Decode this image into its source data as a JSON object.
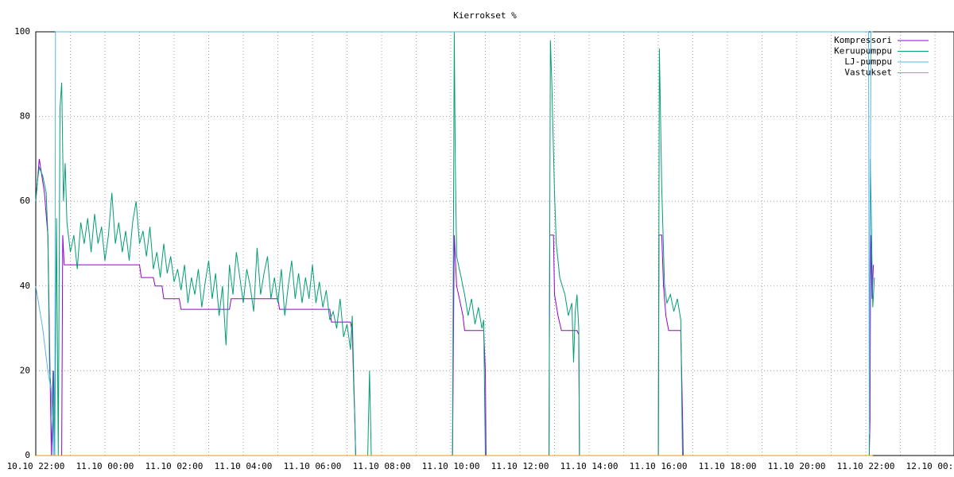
{
  "chart_data": {
    "type": "line",
    "title": "Kierrokset %",
    "xlim": [
      22,
      48.55
    ],
    "ylim": [
      0,
      100
    ],
    "xticks": [
      {
        "value": 22,
        "label": "10.10 22:00"
      },
      {
        "value": 24,
        "label": "11.10 00:00"
      },
      {
        "value": 26,
        "label": "11.10 02:00"
      },
      {
        "value": 28,
        "label": "11.10 04:00"
      },
      {
        "value": 30,
        "label": "11.10 06:00"
      },
      {
        "value": 32,
        "label": "11.10 08:00"
      },
      {
        "value": 34,
        "label": "11.10 10:00"
      },
      {
        "value": 36,
        "label": "11.10 12:00"
      },
      {
        "value": 38,
        "label": "11.10 14:00"
      },
      {
        "value": 40,
        "label": "11.10 16:00"
      },
      {
        "value": 42,
        "label": "11.10 18:00"
      },
      {
        "value": 44,
        "label": "11.10 20:00"
      },
      {
        "value": 46,
        "label": "11.10 22:00"
      },
      {
        "value": 48,
        "label": "12.10 00:00"
      }
    ],
    "xgrid": [
      23,
      25,
      27,
      29,
      31,
      33,
      35,
      37,
      39,
      41,
      43,
      45,
      47
    ],
    "yticks": [
      0,
      20,
      40,
      60,
      80,
      100
    ],
    "grid": true,
    "legend": "top-right",
    "series": [
      {
        "name": "Kompressori",
        "color": "#9400d3",
        "x": [
          22.0,
          22.1,
          22.25,
          22.35,
          22.45,
          22.5,
          22.55,
          22.75,
          22.78,
          22.82,
          25.0,
          25.05,
          25.4,
          25.45,
          25.65,
          25.7,
          26.15,
          26.2,
          27.6,
          27.65,
          29.0,
          29.05,
          30.5,
          30.55,
          31.1,
          31.15,
          31.2,
          31.22,
          31.25,
          34.05,
          34.1,
          34.17,
          34.25,
          34.35,
          34.4,
          34.95,
          35.0,
          35.02,
          36.84,
          36.86,
          36.97,
          37.0,
          37.1,
          37.2,
          37.65,
          37.7,
          37.72,
          40.0,
          40.02,
          40.1,
          40.15,
          40.22,
          40.3,
          40.65,
          40.7,
          40.72,
          46.1,
          46.12,
          46.14,
          46.18,
          46.22
        ],
        "values": [
          60,
          70,
          62,
          52,
          0,
          20,
          0,
          0,
          52,
          45,
          45,
          42,
          42,
          40,
          40,
          37,
          37,
          34.5,
          34.5,
          37,
          37,
          34.5,
          34.5,
          31.5,
          31.5,
          29,
          15,
          10,
          0,
          0,
          52,
          40,
          37,
          33,
          29.5,
          29.5,
          20,
          0,
          0,
          52,
          52,
          38,
          33,
          29.5,
          29.5,
          28.5,
          0,
          0,
          52,
          52,
          40,
          33,
          29.5,
          29.5,
          10,
          0,
          0,
          8,
          52,
          37,
          45
        ]
      },
      {
        "name": "Keruupumppu",
        "color": "#009e73",
        "x": [
          22.0,
          22.05,
          22.1,
          22.2,
          22.3,
          22.35,
          22.4,
          22.45,
          22.5,
          22.52,
          22.55,
          22.6,
          22.65,
          22.7,
          22.75,
          22.8,
          22.85,
          22.9,
          23.0,
          23.1,
          23.2,
          23.3,
          23.4,
          23.5,
          23.6,
          23.7,
          23.8,
          23.9,
          24.0,
          24.1,
          24.2,
          24.3,
          24.4,
          24.5,
          24.6,
          24.7,
          24.8,
          24.9,
          25.0,
          25.1,
          25.2,
          25.3,
          25.4,
          25.5,
          25.6,
          25.7,
          25.8,
          25.9,
          26.0,
          26.1,
          26.2,
          26.3,
          26.4,
          26.5,
          26.6,
          26.7,
          26.8,
          26.9,
          27.0,
          27.1,
          27.2,
          27.3,
          27.4,
          27.5,
          27.6,
          27.7,
          27.8,
          27.9,
          28.0,
          28.1,
          28.2,
          28.3,
          28.4,
          28.5,
          28.6,
          28.7,
          28.8,
          28.9,
          29.0,
          29.1,
          29.2,
          29.3,
          29.4,
          29.5,
          29.6,
          29.7,
          29.8,
          29.9,
          30.0,
          30.1,
          30.2,
          30.3,
          30.4,
          30.5,
          30.6,
          30.7,
          30.8,
          30.9,
          31.0,
          31.1,
          31.15,
          31.25,
          31.6,
          31.65,
          31.7,
          34.05,
          34.1,
          34.13,
          34.17,
          34.3,
          34.4,
          34.5,
          34.6,
          34.7,
          34.8,
          34.9,
          34.95,
          35.0,
          36.84,
          36.88,
          36.92,
          37.0,
          37.05,
          37.15,
          37.3,
          37.4,
          37.5,
          37.55,
          37.6,
          37.65,
          37.7,
          37.72,
          40.0,
          40.03,
          40.1,
          40.18,
          40.25,
          40.35,
          40.45,
          40.55,
          40.65,
          40.7,
          46.1,
          46.13,
          46.17,
          46.2,
          46.25
        ],
        "values": [
          60,
          65,
          68,
          66,
          62,
          52,
          20,
          15,
          0,
          20,
          0,
          56,
          0,
          82,
          88,
          60,
          69,
          55,
          48,
          52,
          44,
          55,
          50,
          56,
          48,
          57,
          50,
          54,
          46,
          52,
          62,
          50,
          55,
          48,
          53,
          46,
          55,
          60,
          50,
          53,
          47,
          54,
          44,
          48,
          42,
          50,
          43,
          47,
          41,
          44,
          39,
          45,
          36,
          42,
          38,
          44,
          35,
          41,
          46,
          37,
          43,
          33,
          40,
          26,
          45,
          38,
          48,
          42,
          36,
          44,
          40,
          34,
          49,
          38,
          43,
          47,
          37,
          42,
          36,
          44,
          33,
          40,
          46,
          37,
          43,
          36,
          42,
          37,
          45,
          36,
          41,
          35,
          39,
          32,
          34,
          30,
          37,
          28,
          31,
          25,
          33,
          0,
          0,
          20,
          0,
          0,
          100,
          69,
          47,
          42,
          38,
          33,
          37,
          31,
          35,
          30,
          32,
          0,
          0,
          98,
          88,
          62,
          50,
          42,
          38,
          33,
          36,
          22,
          34,
          38,
          30,
          0,
          0,
          96,
          63,
          40,
          36,
          38,
          34,
          37,
          32,
          0,
          0,
          70,
          50,
          35,
          42
        ]
      },
      {
        "name": "LJ-pumppu",
        "color": "#56b4e9",
        "x": [
          22.0,
          22.2,
          22.35,
          22.45,
          22.5,
          22.55,
          22.57,
          46.08,
          46.1,
          46.15,
          46.2
        ],
        "values": [
          40,
          30,
          20,
          15,
          0,
          0,
          100,
          100,
          5,
          100,
          100
        ]
      },
      {
        "name": "Vastukset",
        "color": "#e69f00",
        "x": [
          22.0,
          46.2
        ],
        "values": [
          0,
          0
        ]
      }
    ]
  }
}
